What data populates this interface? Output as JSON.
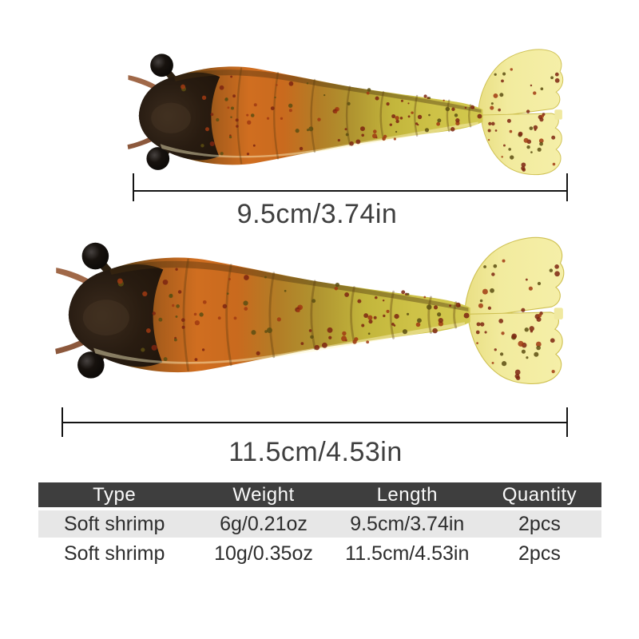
{
  "lures": [
    {
      "type": "Soft shrimp",
      "dimension_label": "9.5cm/3.74in"
    },
    {
      "type": "Soft shrimp",
      "dimension_label": "11.5cm/4.53in"
    }
  ],
  "spec_table": {
    "columns": [
      "Type",
      "Weight",
      "Length",
      "Quantity"
    ],
    "rows": [
      [
        "Soft shrimp",
        "6g/0.21oz",
        "9.5cm/3.74in",
        "2pcs"
      ],
      [
        "Soft shrimp",
        "10g/0.35oz",
        "11.5cm/4.53in",
        "2pcs"
      ]
    ]
  },
  "colors": {
    "table_header_bg": "#3e3e3e",
    "table_header_text": "#fafafa",
    "table_row_alt_bg": "#e7e7e7",
    "table_text": "#2d2d2d",
    "dimension_line": "#141414",
    "dimension_label_text": "#3f3f3f",
    "lure_head": "#241910",
    "lure_body_orange": "#d06e20",
    "lure_body_yellow": "#d2c84e",
    "lure_tail_fan": "#f2eb9e",
    "lure_speckle": "#7c2410"
  }
}
